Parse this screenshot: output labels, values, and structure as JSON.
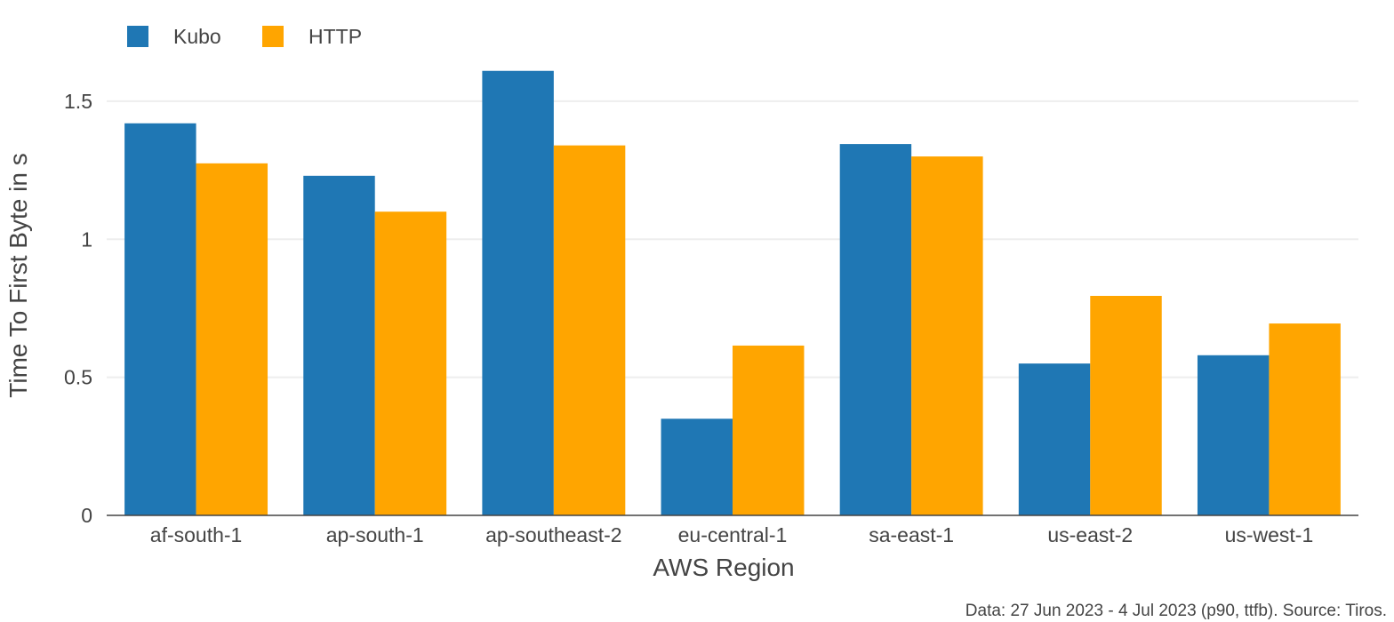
{
  "chart_data": {
    "type": "bar",
    "categories": [
      "af-south-1",
      "ap-south-1",
      "ap-southeast-2",
      "eu-central-1",
      "sa-east-1",
      "us-east-2",
      "us-west-1"
    ],
    "series": [
      {
        "name": "Kubo",
        "color": "#1f77b4",
        "values": [
          1.42,
          1.23,
          1.61,
          0.35,
          1.345,
          0.55,
          0.58
        ]
      },
      {
        "name": "HTTP",
        "color": "#ffa500",
        "values": [
          1.275,
          1.1,
          1.34,
          0.615,
          1.3,
          0.795,
          0.695
        ]
      }
    ],
    "xlabel": "AWS Region",
    "ylabel": "Time To First Byte in s",
    "ylim": [
      0,
      1.68
    ],
    "yticks": [
      0,
      0.5,
      1,
      1.5
    ],
    "ytick_labels": [
      "0",
      "0.5",
      "1",
      "1.5"
    ],
    "grid": true,
    "legend_position": "top-left",
    "footnote": "Data: 27 Jun 2023 - 4 Jul 2023 (p90, ttfb). Source: Tiros."
  }
}
